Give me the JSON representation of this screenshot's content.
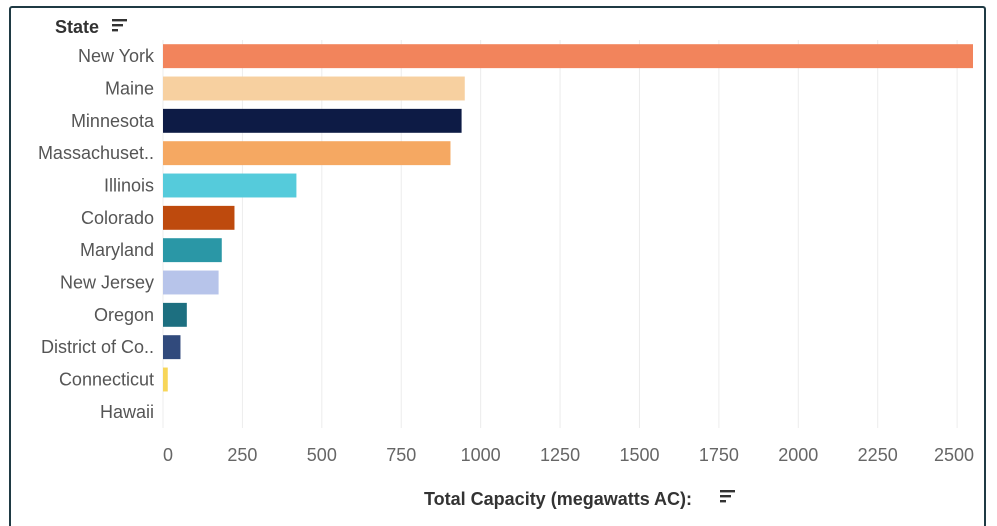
{
  "chart_data": {
    "type": "bar",
    "orientation": "horizontal",
    "ylabel": "State",
    "xlabel": "Total Capacity (megawatts AC):",
    "categories": [
      "New York",
      "Maine",
      "Minnesota",
      "Massachuset..",
      "Illinois",
      "Colorado",
      "Maryland",
      "New Jersey",
      "Oregon",
      "District of Co..",
      "Connecticut",
      "Hawaii"
    ],
    "values": [
      2550,
      950,
      940,
      905,
      420,
      225,
      185,
      175,
      75,
      55,
      15,
      0
    ],
    "colors": [
      "#F2845C",
      "#F7D0A0",
      "#0D1B45",
      "#F5A862",
      "#55CBDB",
      "#BE4A0D",
      "#2A97A6",
      "#B7C4EA",
      "#1D6F80",
      "#314A7C",
      "#F7D65A",
      "#cccccc"
    ],
    "xticks": [
      0,
      250,
      500,
      750,
      1000,
      1250,
      1500,
      1750,
      2000,
      2250,
      2500
    ],
    "xlim": [
      0,
      2550
    ],
    "grid": true,
    "sort_icon": "sort-descending-icon"
  }
}
